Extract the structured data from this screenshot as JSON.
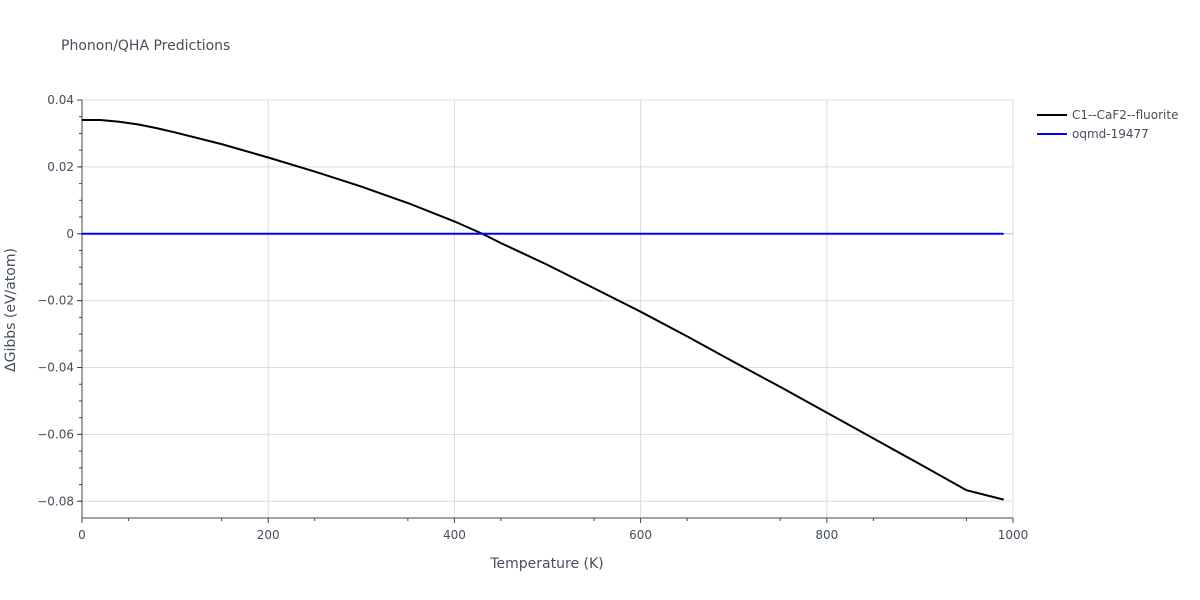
{
  "chart_data": {
    "type": "line",
    "title": "Phonon/QHA Predictions",
    "xlabel": "Temperature (K)",
    "ylabel": "ΔGibbs (eV/atom)",
    "xlim": [
      0,
      1000
    ],
    "ylim": [
      -0.085,
      0.04
    ],
    "x_ticks": [
      0,
      200,
      400,
      600,
      800,
      1000
    ],
    "x_tick_labels": [
      "0",
      "200",
      "400",
      "600",
      "800",
      "1000"
    ],
    "y_ticks": [
      0.04,
      0.02,
      0,
      -0.02,
      -0.04,
      -0.06,
      -0.08
    ],
    "y_tick_labels": [
      "0.04",
      "0.02",
      "0",
      "−0.02",
      "−0.04",
      "−0.06",
      "−0.08"
    ],
    "grid": true,
    "legend_position": "top-right outside",
    "series": [
      {
        "name": "C1--CaF2--fluorite",
        "color": "#000000",
        "x": [
          0,
          20,
          40,
          60,
          80,
          100,
          150,
          200,
          250,
          300,
          350,
          400,
          430,
          450,
          500,
          550,
          600,
          650,
          700,
          750,
          800,
          850,
          900,
          950,
          990
        ],
        "y": [
          0.034,
          0.034,
          0.0335,
          0.0327,
          0.0316,
          0.0303,
          0.0268,
          0.0228,
          0.0186,
          0.0141,
          0.0092,
          0.0037,
          0.0,
          -0.0028,
          -0.0093,
          -0.0163,
          -0.0233,
          -0.0307,
          -0.0383,
          -0.0458,
          -0.0535,
          -0.0612,
          -0.0689,
          -0.0767,
          -0.0795
        ]
      },
      {
        "name": "oqmd-19477",
        "color": "#0000ff",
        "x": [
          0,
          990
        ],
        "y": [
          0,
          0
        ]
      }
    ]
  }
}
